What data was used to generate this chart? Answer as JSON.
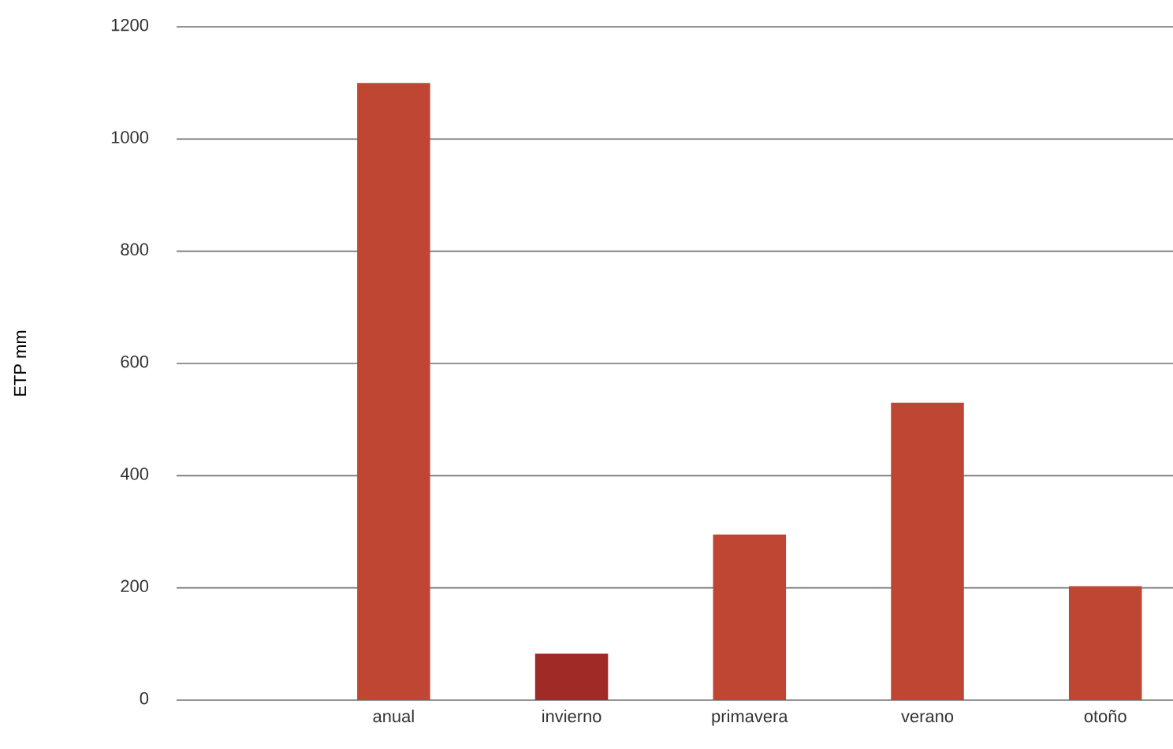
{
  "chart_data": {
    "type": "bar",
    "ylabel": "ETP mm",
    "categories": [
      "anual",
      "invierno",
      "primavera",
      "verano",
      "otoño"
    ],
    "values": [
      1100,
      83,
      295,
      530,
      203
    ],
    "colors": [
      "#bf4632",
      "#a02a26",
      "#bf4632",
      "#bf4632",
      "#bf4632"
    ],
    "ylim": [
      0,
      1200
    ],
    "yticks": [
      0,
      200,
      400,
      600,
      800,
      1000,
      1200
    ],
    "grid": "y"
  }
}
